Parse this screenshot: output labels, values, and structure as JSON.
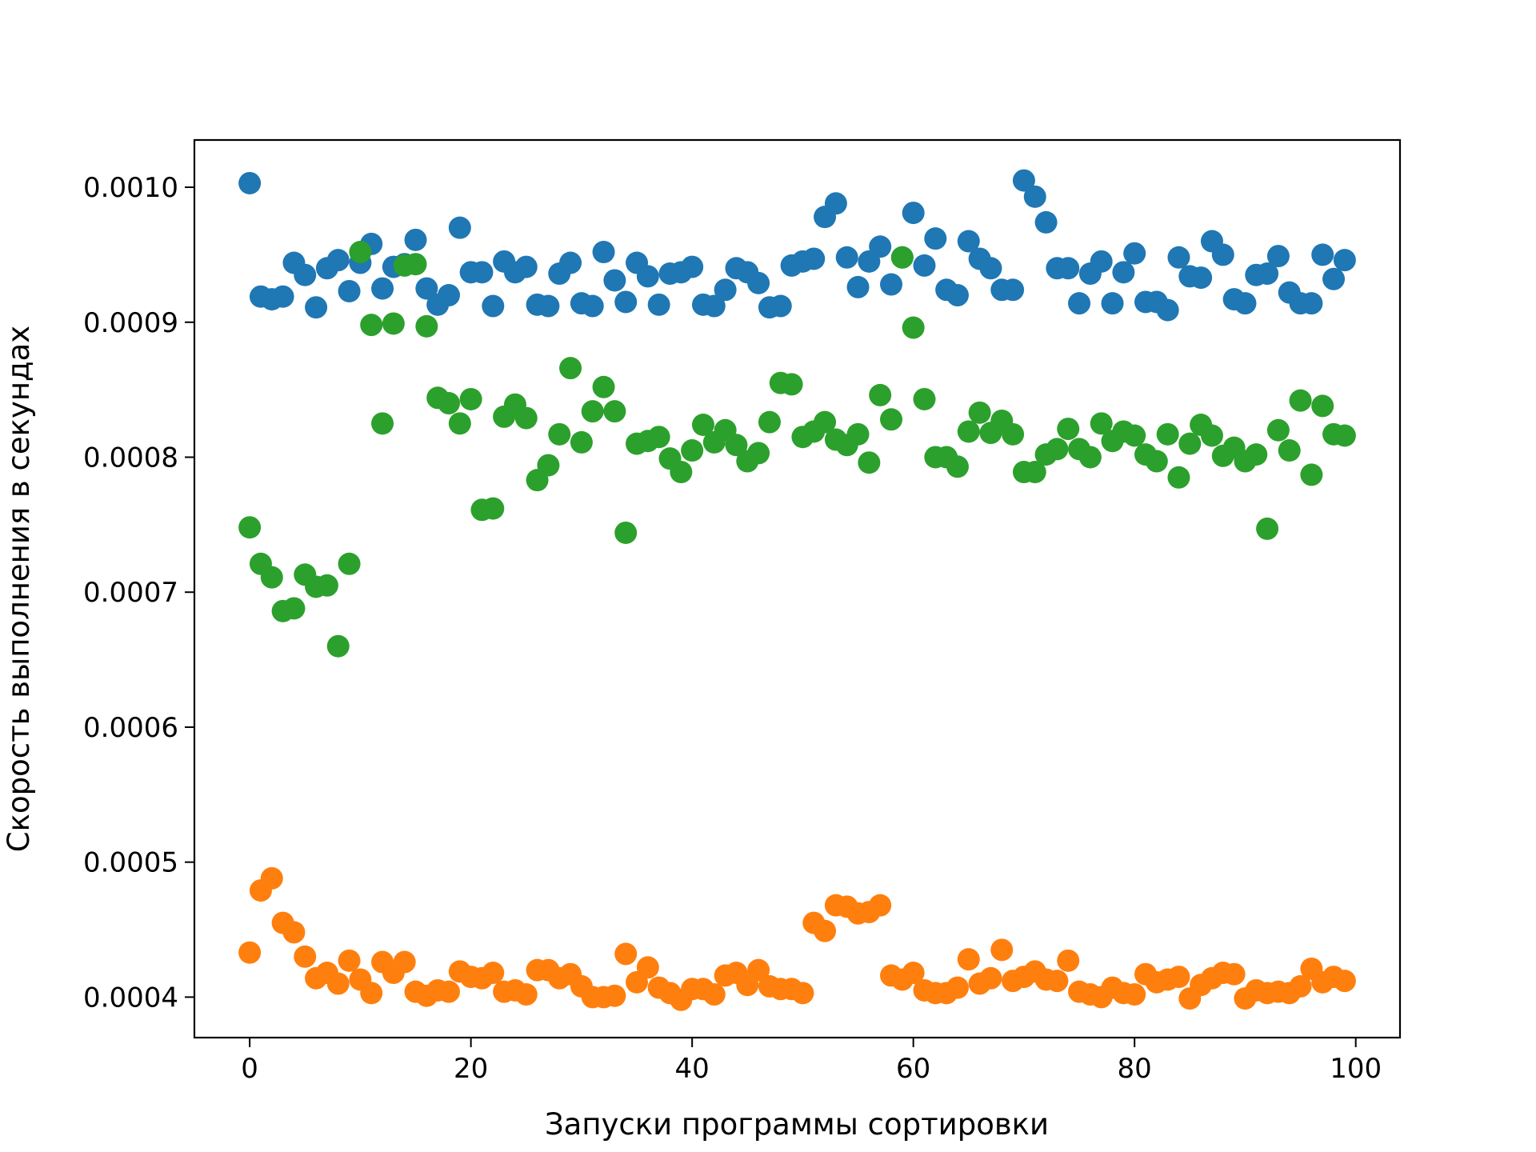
{
  "chart_data": {
    "type": "scatter",
    "title": "",
    "xlabel": "Запуски программы сортировки",
    "ylabel": "Скорость выполнения в секундах",
    "xlim": [
      -5,
      104
    ],
    "ylim": [
      0.00037,
      0.001035
    ],
    "grid": false,
    "x_ticks": [
      0,
      20,
      40,
      60,
      80,
      100
    ],
    "x_tick_labels": [
      "0",
      "20",
      "40",
      "60",
      "80",
      "100"
    ],
    "y_ticks": [
      0.0004,
      0.0005,
      0.0006,
      0.0007,
      0.0008,
      0.0009,
      0.001
    ],
    "y_tick_labels": [
      "0.0004",
      "0.0005",
      "0.0006",
      "0.0007",
      "0.0008",
      "0.0009",
      "0.0010"
    ],
    "x": [
      0,
      1,
      2,
      3,
      4,
      5,
      6,
      7,
      8,
      9,
      10,
      11,
      12,
      13,
      14,
      15,
      16,
      17,
      18,
      19,
      20,
      21,
      22,
      23,
      24,
      25,
      26,
      27,
      28,
      29,
      30,
      31,
      32,
      33,
      34,
      35,
      36,
      37,
      38,
      39,
      40,
      41,
      42,
      43,
      44,
      45,
      46,
      47,
      48,
      49,
      50,
      51,
      52,
      53,
      54,
      55,
      56,
      57,
      58,
      59,
      60,
      61,
      62,
      63,
      64,
      65,
      66,
      67,
      68,
      69,
      70,
      71,
      72,
      73,
      74,
      75,
      76,
      77,
      78,
      79,
      80,
      81,
      82,
      83,
      84,
      85,
      86,
      87,
      88,
      89,
      90,
      91,
      92,
      93,
      94,
      95,
      96,
      97,
      98,
      99
    ],
    "series": [
      {
        "color": "#1f77b4",
        "values": [
          0.001003,
          0.000919,
          0.000917,
          0.000919,
          0.000944,
          0.000935,
          0.000911,
          0.00094,
          0.000946,
          0.000923,
          0.000944,
          0.000958,
          0.000925,
          0.000941,
          0.000943,
          0.000961,
          0.000925,
          0.000913,
          0.00092,
          0.00097,
          0.000937,
          0.000937,
          0.000912,
          0.000945,
          0.000937,
          0.000941,
          0.000913,
          0.000912,
          0.000936,
          0.000944,
          0.000914,
          0.000912,
          0.000952,
          0.000931,
          0.000915,
          0.000944,
          0.000934,
          0.000913,
          0.000936,
          0.000937,
          0.000941,
          0.000913,
          0.000912,
          0.000924,
          0.00094,
          0.000937,
          0.000929,
          0.000911,
          0.000912,
          0.000942,
          0.000945,
          0.000947,
          0.000978,
          0.000988,
          0.000948,
          0.000926,
          0.000945,
          0.000956,
          0.000928,
          0.000948,
          0.000981,
          0.000942,
          0.000962,
          0.000924,
          0.00092,
          0.00096,
          0.000947,
          0.00094,
          0.000924,
          0.000924,
          0.001005,
          0.000993,
          0.000974,
          0.00094,
          0.00094,
          0.000914,
          0.000936,
          0.000945,
          0.000914,
          0.000937,
          0.000951,
          0.000915,
          0.000915,
          0.000909,
          0.000948,
          0.000934,
          0.000933,
          0.00096,
          0.00095,
          0.000917,
          0.000914,
          0.000935,
          0.000936,
          0.000949,
          0.000922,
          0.000914,
          0.000914,
          0.00095,
          0.000932,
          0.000946
        ]
      },
      {
        "color": "#ff7f0e",
        "values": [
          0.000433,
          0.000479,
          0.000488,
          0.000455,
          0.000448,
          0.00043,
          0.000414,
          0.000418,
          0.00041,
          0.000427,
          0.000413,
          0.000403,
          0.000426,
          0.000418,
          0.000426,
          0.000404,
          0.000401,
          0.000405,
          0.000404,
          0.000419,
          0.000415,
          0.000414,
          0.000418,
          0.000404,
          0.000405,
          0.000402,
          0.00042,
          0.00042,
          0.000414,
          0.000417,
          0.000408,
          0.0004,
          0.0004,
          0.000401,
          0.000432,
          0.000411,
          0.000422,
          0.000407,
          0.000403,
          0.000398,
          0.000406,
          0.000406,
          0.000402,
          0.000416,
          0.000418,
          0.000409,
          0.00042,
          0.000408,
          0.000406,
          0.000406,
          0.000403,
          0.000455,
          0.000449,
          0.000468,
          0.000467,
          0.000462,
          0.000463,
          0.000468,
          0.000416,
          0.000413,
          0.000418,
          0.000405,
          0.000403,
          0.000403,
          0.000407,
          0.000428,
          0.00041,
          0.000414,
          0.000435,
          0.000412,
          0.000415,
          0.000419,
          0.000413,
          0.000412,
          0.000427,
          0.000404,
          0.000402,
          0.0004,
          0.000407,
          0.000403,
          0.000402,
          0.000417,
          0.000411,
          0.000413,
          0.000415,
          0.000399,
          0.000409,
          0.000414,
          0.000418,
          0.000417,
          0.000399,
          0.000405,
          0.000403,
          0.000404,
          0.000403,
          0.000408,
          0.000421,
          0.000411,
          0.000415,
          0.000412
        ]
      },
      {
        "color": "#2ca02c",
        "values": [
          0.000748,
          0.000721,
          0.000711,
          0.000686,
          0.000688,
          0.000713,
          0.000704,
          0.000705,
          0.00066,
          0.000721,
          0.000952,
          0.000898,
          0.000825,
          0.000899,
          0.000942,
          0.000943,
          0.000897,
          0.000844,
          0.00084,
          0.000825,
          0.000843,
          0.000761,
          0.000762,
          0.00083,
          0.000839,
          0.000829,
          0.000783,
          0.000794,
          0.000817,
          0.000866,
          0.000811,
          0.000834,
          0.000852,
          0.000834,
          0.000744,
          0.00081,
          0.000812,
          0.000815,
          0.000799,
          0.000789,
          0.000805,
          0.000824,
          0.000811,
          0.00082,
          0.000809,
          0.000797,
          0.000803,
          0.000826,
          0.000855,
          0.000854,
          0.000815,
          0.000819,
          0.000826,
          0.000813,
          0.000809,
          0.000817,
          0.000796,
          0.000846,
          0.000828,
          0.000948,
          0.000896,
          0.000843,
          0.0008,
          0.0008,
          0.000793,
          0.000819,
          0.000833,
          0.000818,
          0.000827,
          0.000817,
          0.000789,
          0.000789,
          0.000802,
          0.000806,
          0.000821,
          0.000806,
          0.0008,
          0.000825,
          0.000812,
          0.000819,
          0.000816,
          0.000802,
          0.000797,
          0.000817,
          0.000785,
          0.00081,
          0.000824,
          0.000816,
          0.000801,
          0.000807,
          0.000797,
          0.000802,
          0.000747,
          0.00082,
          0.000805,
          0.000842,
          0.000787,
          0.000838,
          0.000817,
          0.000816
        ]
      }
    ]
  }
}
